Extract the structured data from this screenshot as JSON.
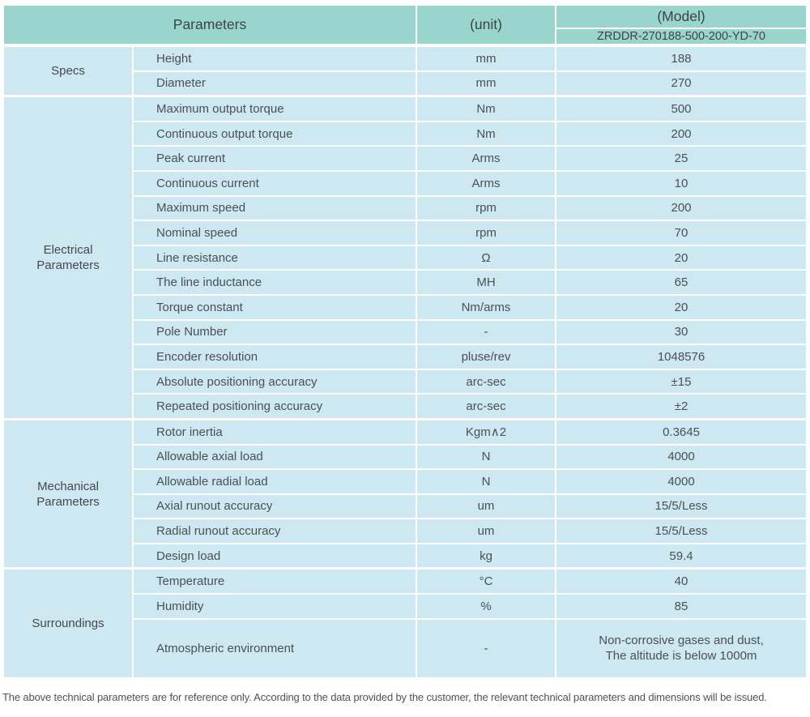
{
  "table": {
    "header": {
      "parameters_label": "Parameters",
      "unit_label": "(unit)",
      "model_label": "(Model)",
      "model_value": "ZRDDR-270188-500-200-YD-70"
    },
    "sections": [
      {
        "label": "Specs"
      },
      {
        "label": "Electrical Parameters"
      },
      {
        "label": "Mechanical Parameters"
      },
      {
        "label": "Surroundings"
      }
    ],
    "rows": [
      {
        "name": "Height",
        "unit": "mm",
        "value": "188"
      },
      {
        "name": "Diameter",
        "unit": "mm",
        "value": "270"
      },
      {
        "name": "Maximum output torque",
        "unit": "Nm",
        "value": "500"
      },
      {
        "name": "Continuous output torque",
        "unit": "Nm",
        "value": "200"
      },
      {
        "name": "Peak current",
        "unit": "Arms",
        "value": "25"
      },
      {
        "name": "Continuous current",
        "unit": "Arms",
        "value": "10"
      },
      {
        "name": "Maximum speed",
        "unit": "rpm",
        "value": "200"
      },
      {
        "name": "Nominal speed",
        "unit": "rpm",
        "value": "70"
      },
      {
        "name": "Line resistance",
        "unit": "Ω",
        "value": "20"
      },
      {
        "name": "The line inductance",
        "unit": "MH",
        "value": "65"
      },
      {
        "name": "Torque constant",
        "unit": "Nm/arms",
        "value": "20"
      },
      {
        "name": "Pole Number",
        "unit": "-",
        "value": "30"
      },
      {
        "name": "Encoder resolution",
        "unit": "pluse/rev",
        "value": "1048576"
      },
      {
        "name": "Absolute positioning accuracy",
        "unit": "arc-sec",
        "value": "±15"
      },
      {
        "name": "Repeated positioning accuracy",
        "unit": "arc-sec",
        "value": "±2"
      },
      {
        "name": "Rotor inertia",
        "unit": "Kgm∧2",
        "value": "0.3645"
      },
      {
        "name": "Allowable axial load",
        "unit": "N",
        "value": "4000"
      },
      {
        "name": "Allowable radial load",
        "unit": "N",
        "value": "4000"
      },
      {
        "name": "Axial runout accuracy",
        "unit": "um",
        "value": "15/5/Less"
      },
      {
        "name": "Radial runout accuracy",
        "unit": "um",
        "value": "15/5/Less"
      },
      {
        "name": "Design load",
        "unit": "kg",
        "value": "59.4"
      },
      {
        "name": "Temperature",
        "unit": "°C",
        "value": "40"
      },
      {
        "name": "Humidity",
        "unit": "%",
        "value": "85"
      },
      {
        "name": "Atmospheric environment",
        "unit": "-",
        "value": "Non-corrosive gases and dust,",
        "value2": "The altitude is below 1000m"
      }
    ]
  },
  "footer": {
    "note": "The above technical parameters are for reference only. According to the data provided by the customer, the relevant technical parameters and dimensions will be issued."
  },
  "colors": {
    "header_bg": "#9ad5cd",
    "cell_bg": "#cde8f0",
    "border": "#ffffff",
    "text": "#4a5054"
  }
}
